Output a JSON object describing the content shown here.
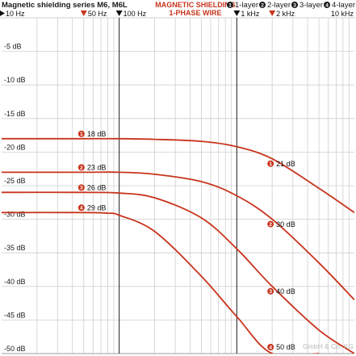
{
  "header": {
    "title": "Magnetic shielding series M6, M6L",
    "subtitle_line1": "MAGNETIC SHIELDING",
    "subtitle_line2": "1-PHASE WIRE",
    "legend": [
      {
        "num": "1",
        "label": "1-layer"
      },
      {
        "num": "2",
        "label": "2-layer"
      },
      {
        "num": "3",
        "label": "3-layer"
      },
      {
        "num": "4",
        "label": "4-layer"
      }
    ]
  },
  "watermark": "GmbH & Co. KG",
  "colors": {
    "curve": "#c8341c",
    "badge": "#c8341c",
    "grid": "#cfcfcf",
    "major_line": "#1a1a1a"
  },
  "chart_data": {
    "type": "line",
    "x_scale": "log",
    "xlim": [
      10,
      10000
    ],
    "ylim": [
      -50,
      0
    ],
    "grid": true,
    "y_ticks": [
      -5,
      -10,
      -15,
      -20,
      -25,
      -30,
      -35,
      -40,
      -45,
      -50
    ],
    "y_tick_labels": [
      "-5 dB",
      "-10 dB",
      "-15 dB",
      "-20 dB",
      "-25 dB",
      "-30 dB",
      "-35 dB",
      "-40 dB",
      "-45 dB",
      "-50 dB"
    ],
    "x_markers": [
      {
        "x": 10,
        "label": "10 Hz",
        "color": "#111111",
        "marker": "right",
        "major": false
      },
      {
        "x": 50,
        "label": "50 Hz",
        "color": "#c8341c",
        "marker": "down",
        "major": false
      },
      {
        "x": 100,
        "label": "100 Hz",
        "color": "#111111",
        "marker": "down",
        "major": true
      },
      {
        "x": 1000,
        "label": "1 kHz",
        "color": "#111111",
        "marker": "down",
        "major": true
      },
      {
        "x": 2000,
        "label": "2 kHz",
        "color": "#c8341c",
        "marker": "down",
        "major": false
      },
      {
        "x": 10000,
        "label": "10 kHz",
        "color": "#111111",
        "marker": "none",
        "major": false
      }
    ],
    "series": [
      {
        "name": "1-layer",
        "num": "1",
        "x": [
          10,
          50,
          100,
          200,
          500,
          1000,
          2000,
          5000,
          10000
        ],
        "y": [
          -18,
          -18,
          -18,
          -18.1,
          -18.4,
          -19.2,
          -21,
          -25.4,
          -29
        ]
      },
      {
        "name": "2-layer",
        "num": "2",
        "x": [
          10,
          50,
          100,
          200,
          500,
          1000,
          2000,
          5000,
          10000
        ],
        "y": [
          -23,
          -23,
          -23,
          -23.3,
          -24.4,
          -26.5,
          -30,
          -36.5,
          -42
        ]
      },
      {
        "name": "3-layer",
        "num": "3",
        "x": [
          10,
          50,
          100,
          200,
          500,
          1000,
          2000,
          5000,
          10000
        ],
        "y": [
          -26,
          -26,
          -26.1,
          -26.8,
          -29.8,
          -34.4,
          -40,
          -46.5,
          -50
        ]
      },
      {
        "name": "4-layer",
        "num": "4",
        "x": [
          10,
          50,
          80,
          100,
          200,
          500,
          1000,
          2000,
          5000
        ],
        "y": [
          -29,
          -29,
          -29.1,
          -29.4,
          -31.8,
          -38.5,
          -44.5,
          -50,
          -50
        ]
      }
    ],
    "annotations": [
      {
        "num": "1",
        "text": "18 dB",
        "x": 50,
        "y": -18
      },
      {
        "num": "2",
        "text": "23 dB",
        "x": 50,
        "y": -23
      },
      {
        "num": "3",
        "text": "26 dB",
        "x": 50,
        "y": -26
      },
      {
        "num": "4",
        "text": "29 dB",
        "x": 50,
        "y": -29
      },
      {
        "num": "1",
        "text": "21 dB",
        "x": 2000,
        "y": -21
      },
      {
        "num": "2",
        "text": "30 dB",
        "x": 2000,
        "y": -30
      },
      {
        "num": "3",
        "text": "40 dB",
        "x": 2000,
        "y": -40
      },
      {
        "num": "4",
        "text": "50 dB",
        "x": 2000,
        "y": -50
      }
    ]
  }
}
